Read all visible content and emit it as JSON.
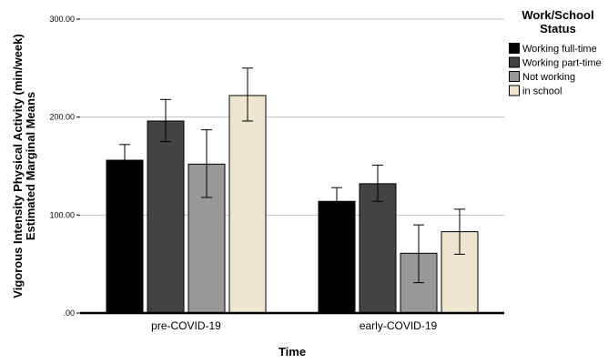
{
  "chart_data": {
    "type": "bar",
    "xlabel": "Time",
    "ylabel_line1": "Vigorous Intensity Physical Activity (min/week)",
    "ylabel_line2": "Estimated Marginal Means",
    "ylim": [
      0,
      300
    ],
    "yticks": [
      0,
      100,
      200,
      300
    ],
    "ytick_labels": [
      ".00",
      "100.00",
      "200.00",
      "300.00"
    ],
    "grid": true,
    "legend_position": "right",
    "legend_title_line1": "Work/School",
    "legend_title_line2": "Status",
    "categories": [
      "pre-COVID-19",
      "early-COVID-19"
    ],
    "series": [
      {
        "name": "Working full-time",
        "color": "#000000",
        "values": [
          156,
          114
        ],
        "err_low": [
          140,
          100
        ],
        "err_high": [
          172,
          128
        ]
      },
      {
        "name": "Working part-time",
        "color": "#434343",
        "values": [
          196,
          132
        ],
        "err_low": [
          175,
          114
        ],
        "err_high": [
          218,
          151
        ]
      },
      {
        "name": "Not working",
        "color": "#9a9897",
        "values": [
          152,
          61
        ],
        "err_low": [
          118,
          31
        ],
        "err_high": [
          187,
          90
        ]
      },
      {
        "name": "in school",
        "color": "#ede5d0",
        "values": [
          222,
          83
        ],
        "err_low": [
          196,
          60
        ],
        "err_high": [
          250,
          106
        ]
      }
    ]
  }
}
